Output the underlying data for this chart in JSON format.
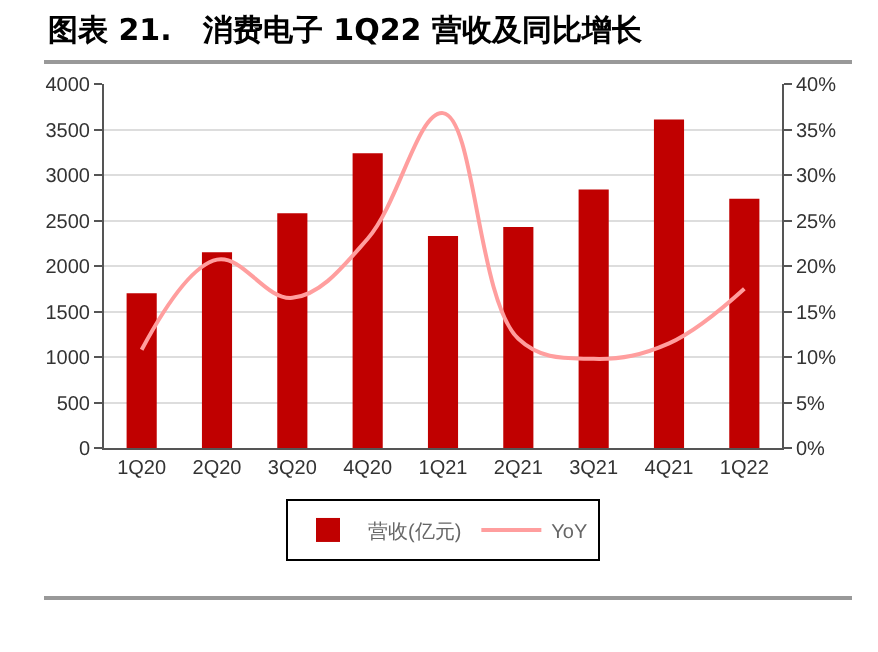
{
  "chart_data": {
    "type": "bar",
    "title": "图表 21.   消费电子 1Q22 营收及同比增长",
    "categories": [
      "1Q20",
      "2Q20",
      "3Q20",
      "4Q20",
      "1Q21",
      "2Q21",
      "3Q21",
      "4Q21",
      "1Q22"
    ],
    "series": [
      {
        "name": "营收(亿元)",
        "color": "#c00000",
        "values": [
          1700,
          2150,
          2580,
          3240,
          2330,
          2430,
          2840,
          3610,
          2740
        ]
      },
      {
        "name": "YoY",
        "type": "line",
        "axis": "y2",
        "color": "#ff9e9e",
        "values": [
          10.8,
          20.7,
          16.5,
          23,
          36.8,
          12,
          9.8,
          11.5,
          17.5
        ]
      }
    ],
    "ylim": [
      0,
      4000
    ],
    "yticks": [
      0,
      500,
      1000,
      1500,
      2000,
      2500,
      3000,
      3500,
      4000
    ],
    "y2lim": [
      0,
      40
    ],
    "y2ticks": [
      {
        "value": 0,
        "label": "0%"
      },
      {
        "value": 5,
        "label": "5%"
      },
      {
        "value": 10,
        "label": "10%"
      },
      {
        "value": 15,
        "label": "15%"
      },
      {
        "value": 20,
        "label": "20%"
      },
      {
        "value": 25,
        "label": "25%"
      },
      {
        "value": 30,
        "label": "30%"
      },
      {
        "value": 35,
        "label": "35%"
      },
      {
        "value": 40,
        "label": "40%"
      }
    ],
    "grid": "y",
    "legend": "bottom",
    "marker": "none",
    "line_style": "solid"
  }
}
